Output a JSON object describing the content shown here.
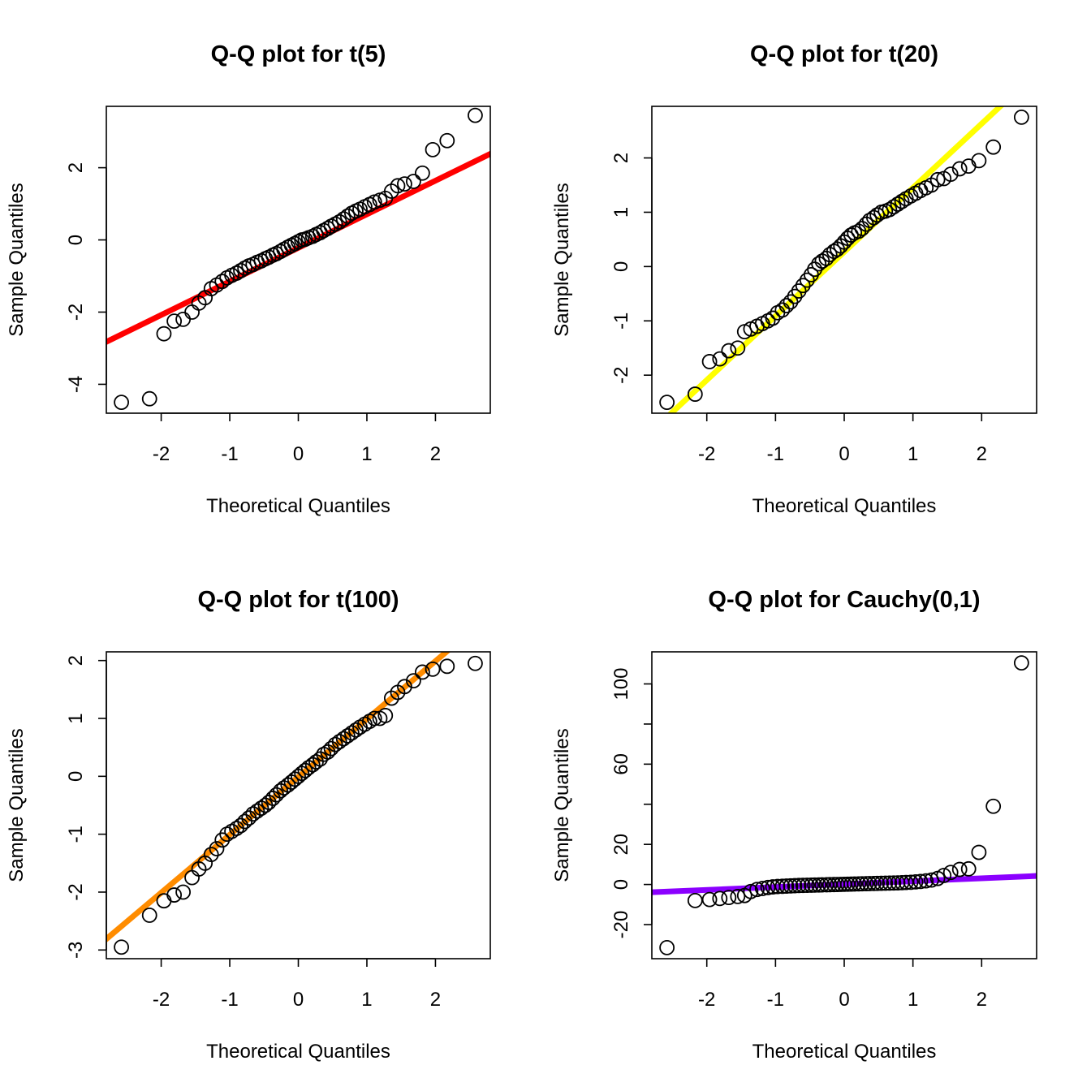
{
  "chart_data": [
    {
      "type": "scatter",
      "title": "Q-Q plot for t(5)",
      "xlabel": "Theoretical Quantiles",
      "ylabel": "Sample Quantiles",
      "xlim": [
        -2.8,
        2.8
      ],
      "ylim": [
        -4.8,
        3.7
      ],
      "xticks": [
        -2,
        -1,
        0,
        1,
        2
      ],
      "yticks": [
        -4,
        -2,
        0,
        2
      ],
      "grid": false,
      "line_color": "#ff0000",
      "line": {
        "slope": 0.93,
        "intercept": -0.22
      },
      "points": {
        "x": [
          -2.58,
          -2.17,
          -1.96,
          -1.81,
          -1.68,
          -1.55,
          -1.45,
          -1.36,
          -1.27,
          -1.19,
          -1.11,
          -1.04,
          -0.97,
          -0.9,
          -0.84,
          -0.78,
          -0.72,
          -0.66,
          -0.6,
          -0.54,
          -0.48,
          -0.43,
          -0.37,
          -0.32,
          -0.26,
          -0.21,
          -0.15,
          -0.1,
          -0.05,
          0.0,
          0.05,
          0.1,
          0.15,
          0.21,
          0.26,
          0.32,
          0.37,
          0.43,
          0.48,
          0.54,
          0.6,
          0.66,
          0.72,
          0.78,
          0.84,
          0.9,
          0.97,
          1.04,
          1.11,
          1.19,
          1.27,
          1.36,
          1.45,
          1.55,
          1.68,
          1.81,
          1.96,
          2.17,
          2.58
        ],
        "y": [
          -4.5,
          -4.4,
          -2.6,
          -2.25,
          -2.2,
          -2.0,
          -1.75,
          -1.6,
          -1.35,
          -1.25,
          -1.15,
          -1.05,
          -0.98,
          -0.92,
          -0.85,
          -0.78,
          -0.72,
          -0.68,
          -0.62,
          -0.58,
          -0.52,
          -0.48,
          -0.42,
          -0.38,
          -0.32,
          -0.26,
          -0.2,
          -0.15,
          -0.1,
          -0.05,
          0.0,
          0.02,
          0.06,
          0.1,
          0.15,
          0.2,
          0.26,
          0.32,
          0.38,
          0.44,
          0.5,
          0.58,
          0.66,
          0.74,
          0.8,
          0.85,
          0.92,
          0.98,
          1.05,
          1.1,
          1.15,
          1.35,
          1.5,
          1.55,
          1.62,
          1.85,
          2.5,
          2.75,
          3.45
        ]
      }
    },
    {
      "type": "scatter",
      "title": "Q-Q plot for t(20)",
      "xlabel": "Theoretical Quantiles",
      "ylabel": "Sample Quantiles",
      "xlim": [
        -2.8,
        2.8
      ],
      "ylim": [
        -2.7,
        2.95
      ],
      "xticks": [
        -2,
        -1,
        0,
        1,
        2
      ],
      "yticks": [
        -2,
        -1,
        0,
        1,
        2
      ],
      "grid": false,
      "line_color": "#ffff00",
      "line": {
        "slope": 1.18,
        "intercept": 0.27
      },
      "points": {
        "x": [
          -2.58,
          -2.17,
          -1.96,
          -1.81,
          -1.68,
          -1.55,
          -1.45,
          -1.36,
          -1.27,
          -1.19,
          -1.11,
          -1.04,
          -0.97,
          -0.9,
          -0.84,
          -0.78,
          -0.72,
          -0.66,
          -0.6,
          -0.54,
          -0.48,
          -0.43,
          -0.37,
          -0.32,
          -0.26,
          -0.21,
          -0.15,
          -0.1,
          -0.05,
          0.0,
          0.05,
          0.1,
          0.15,
          0.21,
          0.26,
          0.32,
          0.37,
          0.43,
          0.48,
          0.54,
          0.6,
          0.66,
          0.72,
          0.78,
          0.84,
          0.9,
          0.97,
          1.04,
          1.11,
          1.19,
          1.27,
          1.36,
          1.45,
          1.55,
          1.68,
          1.81,
          1.96,
          2.17,
          2.58
        ],
        "y": [
          -2.5,
          -2.35,
          -1.75,
          -1.7,
          -1.55,
          -1.5,
          -1.2,
          -1.15,
          -1.1,
          -1.05,
          -1.0,
          -0.95,
          -0.85,
          -0.8,
          -0.72,
          -0.65,
          -0.55,
          -0.45,
          -0.35,
          -0.25,
          -0.15,
          -0.05,
          0.05,
          0.1,
          0.15,
          0.22,
          0.28,
          0.32,
          0.38,
          0.45,
          0.52,
          0.58,
          0.62,
          0.65,
          0.7,
          0.78,
          0.85,
          0.9,
          0.95,
          1.0,
          1.02,
          1.05,
          1.1,
          1.15,
          1.2,
          1.25,
          1.3,
          1.35,
          1.4,
          1.45,
          1.5,
          1.6,
          1.62,
          1.7,
          1.8,
          1.85,
          1.95,
          2.2,
          2.75
        ]
      }
    },
    {
      "type": "scatter",
      "title": "Q-Q plot for t(100)",
      "xlabel": "Theoretical Quantiles",
      "ylabel": "Sample Quantiles",
      "xlim": [
        -2.8,
        2.8
      ],
      "ylim": [
        -3.15,
        2.15
      ],
      "xticks": [
        -2,
        -1,
        0,
        1,
        2
      ],
      "yticks": [
        -3,
        -2,
        -1,
        0,
        1,
        2
      ],
      "grid": false,
      "line_color": "#ff8c00",
      "line": {
        "slope": 1.0,
        "intercept": -0.01
      },
      "points": {
        "x": [
          -2.58,
          -2.17,
          -1.96,
          -1.81,
          -1.68,
          -1.55,
          -1.45,
          -1.36,
          -1.27,
          -1.19,
          -1.11,
          -1.04,
          -0.97,
          -0.9,
          -0.84,
          -0.78,
          -0.72,
          -0.66,
          -0.6,
          -0.54,
          -0.48,
          -0.43,
          -0.37,
          -0.32,
          -0.26,
          -0.21,
          -0.15,
          -0.1,
          -0.05,
          0.0,
          0.05,
          0.1,
          0.15,
          0.21,
          0.26,
          0.32,
          0.37,
          0.43,
          0.48,
          0.54,
          0.6,
          0.66,
          0.72,
          0.78,
          0.84,
          0.9,
          0.97,
          1.04,
          1.11,
          1.19,
          1.27,
          1.36,
          1.45,
          1.55,
          1.68,
          1.81,
          1.96,
          2.17,
          2.58
        ],
        "y": [
          -2.95,
          -2.4,
          -2.15,
          -2.05,
          -2.0,
          -1.75,
          -1.6,
          -1.5,
          -1.35,
          -1.25,
          -1.1,
          -1.0,
          -0.95,
          -0.9,
          -0.85,
          -0.78,
          -0.72,
          -0.65,
          -0.6,
          -0.55,
          -0.5,
          -0.45,
          -0.38,
          -0.32,
          -0.25,
          -0.2,
          -0.15,
          -0.1,
          -0.05,
          0.0,
          0.05,
          0.1,
          0.15,
          0.2,
          0.25,
          0.3,
          0.38,
          0.42,
          0.48,
          0.55,
          0.6,
          0.65,
          0.7,
          0.75,
          0.8,
          0.85,
          0.9,
          0.95,
          1.0,
          1.0,
          1.05,
          1.35,
          1.45,
          1.55,
          1.65,
          1.8,
          1.85,
          1.9,
          1.95
        ]
      }
    },
    {
      "type": "scatter",
      "title": "Q-Q plot for Cauchy(0,1)",
      "xlabel": "Theoretical Quantiles",
      "ylabel": "Sample Quantiles",
      "xlim": [
        -2.8,
        2.8
      ],
      "ylim": [
        -37,
        116
      ],
      "xticks": [
        -2,
        -1,
        0,
        1,
        2
      ],
      "yticks": [
        -20,
        0,
        20,
        40,
        60,
        80,
        100
      ],
      "ytick_labels": [
        "-20",
        "0",
        "20",
        "",
        "60",
        "",
        "100"
      ],
      "grid": false,
      "line_color": "#8b00ff",
      "line": {
        "slope": 1.45,
        "intercept": 0.2
      },
      "points": {
        "x": [
          -2.58,
          -2.17,
          -1.96,
          -1.81,
          -1.68,
          -1.55,
          -1.45,
          -1.36,
          -1.27,
          -1.19,
          -1.11,
          -1.04,
          -0.97,
          -0.9,
          -0.84,
          -0.78,
          -0.72,
          -0.66,
          -0.6,
          -0.54,
          -0.48,
          -0.43,
          -0.37,
          -0.32,
          -0.26,
          -0.21,
          -0.15,
          -0.1,
          -0.05,
          0.0,
          0.05,
          0.1,
          0.15,
          0.21,
          0.26,
          0.32,
          0.37,
          0.43,
          0.48,
          0.54,
          0.6,
          0.66,
          0.72,
          0.78,
          0.84,
          0.9,
          0.97,
          1.04,
          1.11,
          1.19,
          1.27,
          1.36,
          1.45,
          1.55,
          1.68,
          1.81,
          1.96,
          2.17,
          2.58
        ],
        "y": [
          -31.5,
          -8.0,
          -7.5,
          -7.0,
          -6.5,
          -6.0,
          -5.5,
          -3.5,
          -2.5,
          -2.0,
          -1.5,
          -1.2,
          -1.0,
          -0.9,
          -0.8,
          -0.7,
          -0.6,
          -0.5,
          -0.45,
          -0.4,
          -0.35,
          -0.3,
          -0.25,
          -0.2,
          -0.15,
          -0.1,
          -0.05,
          0.0,
          0.05,
          0.1,
          0.15,
          0.2,
          0.25,
          0.3,
          0.35,
          0.4,
          0.45,
          0.5,
          0.55,
          0.6,
          0.65,
          0.7,
          0.75,
          0.8,
          0.9,
          1.0,
          1.1,
          1.3,
          1.5,
          1.8,
          2.2,
          3.0,
          4.5,
          6.0,
          7.5,
          7.8,
          16.0,
          39.0,
          110.5
        ]
      }
    }
  ]
}
